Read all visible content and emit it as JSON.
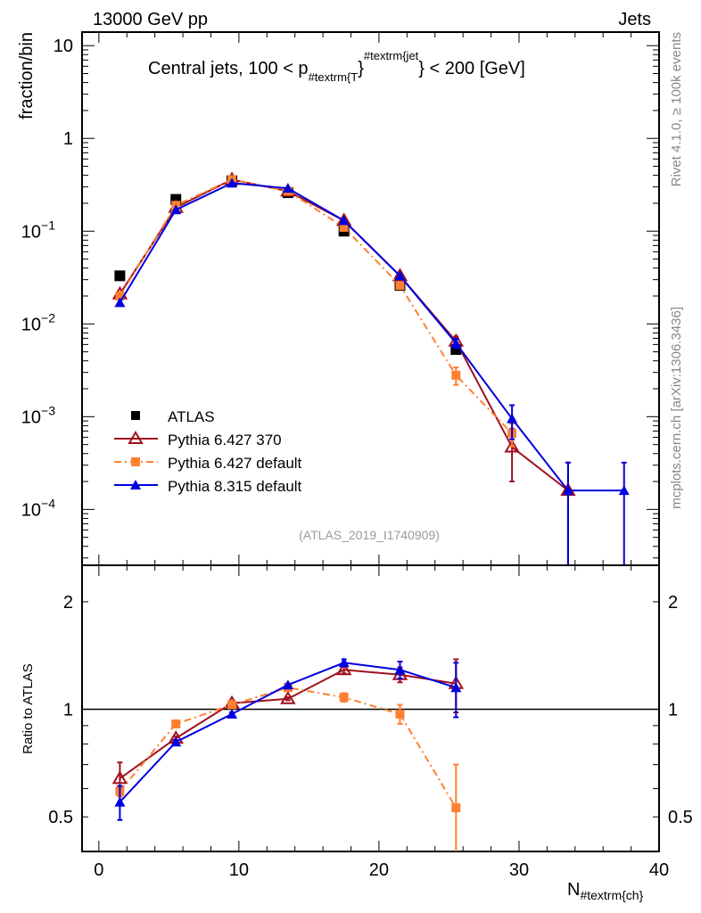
{
  "header": {
    "energy_label": "13000 GeV pp",
    "process_label": "Jets",
    "rivet_label": "Rivet 4.1.0, ≥ 100k events",
    "mcplots_label": "mcplots.cern.ch [arXiv:1306.3436]",
    "analysis_label": "(ATLAS_2019_I1740909)"
  },
  "colors": {
    "atlas": "#000000",
    "py6_370": "#a0101e",
    "py6_default": "#ff8030",
    "py8": "#0000e0"
  },
  "chart_data": [
    {
      "type": "line",
      "title_main": "Central jets, 100 < p",
      "title_sub": "#textrm{T",
      "title_sup": "#textrm{jet",
      "title_end": "} < 200 [GeV]",
      "title_brace": "}",
      "ylabel": "fraction/bin",
      "yscale": "log",
      "ylim": [
        2.5e-05,
        14
      ],
      "xlim": [
        -1.2,
        40
      ],
      "ytick_labels": [
        {
          "value": 10,
          "label": "10"
        },
        {
          "value": 1,
          "label": "1"
        },
        {
          "value": 0.1,
          "base": "10",
          "exp": "−1"
        },
        {
          "value": 0.01,
          "base": "10",
          "exp": "−2"
        },
        {
          "value": 0.001,
          "base": "10",
          "exp": "−3"
        },
        {
          "value": 0.0001,
          "base": "10",
          "exp": "−4"
        }
      ],
      "legend_position": "bottom-left",
      "series": [
        {
          "name": "ATLAS",
          "key": "atlas",
          "marker": "square",
          "line": "none",
          "x": [
            1.5,
            5.5,
            9.5,
            13.5,
            17.5,
            21.5,
            25.5
          ],
          "y": [
            0.033,
            0.22,
            0.35,
            0.26,
            0.1,
            0.026,
            0.0053
          ],
          "err_lo": [
            0,
            0,
            0,
            0,
            0,
            0,
            0
          ],
          "err_hi": [
            0,
            0,
            0,
            0,
            0,
            0,
            0
          ]
        },
        {
          "name": "Pythia 6.427 370",
          "key": "py6_370",
          "marker": "open-triangle",
          "line": "solid",
          "x": [
            1.5,
            5.5,
            9.5,
            13.5,
            17.5,
            21.5,
            25.5,
            29.5,
            33.5
          ],
          "y": [
            0.021,
            0.18,
            0.36,
            0.27,
            0.13,
            0.033,
            0.0065,
            0.00047,
            0.00016
          ],
          "err_lo": [
            0,
            0,
            0,
            0,
            0,
            0,
            0.0008,
            0.00027,
            0.00016
          ],
          "err_hi": [
            0,
            0,
            0,
            0,
            0,
            0,
            0.0008,
            0.00027,
            0.00016
          ]
        },
        {
          "name": "Pythia 6.427 default",
          "key": "py6_default",
          "marker": "square",
          "line": "dashdot",
          "x": [
            1.5,
            5.5,
            9.5,
            13.5,
            17.5,
            21.5,
            25.5,
            29.5
          ],
          "y": [
            0.02,
            0.19,
            0.36,
            0.27,
            0.11,
            0.026,
            0.0028,
            0.00066
          ],
          "err_lo": [
            0,
            0,
            0,
            0,
            0,
            0,
            0.0006,
            0.00018
          ],
          "err_hi": [
            0,
            0,
            0,
            0,
            0,
            0,
            0.0006,
            0.00018
          ]
        },
        {
          "name": "Pythia 8.315 default",
          "key": "py8",
          "marker": "triangle",
          "line": "solid",
          "x": [
            1.5,
            5.5,
            9.5,
            13.5,
            17.5,
            21.5,
            25.5,
            29.5,
            33.5,
            37.5
          ],
          "y": [
            0.017,
            0.17,
            0.33,
            0.29,
            0.13,
            0.033,
            0.0062,
            0.00095,
            0.00016,
            0.00016
          ],
          "err_lo": [
            0,
            0,
            0,
            0,
            0,
            0,
            0.0007,
            0.00038,
            0.00016,
            0.00016
          ],
          "err_hi": [
            0,
            0,
            0,
            0,
            0,
            0,
            0.0007,
            0.00038,
            0.00016,
            0.00016
          ]
        }
      ]
    },
    {
      "type": "line",
      "ylabel": "Ratio to ATLAS",
      "xlabel": "N",
      "xlabel_sub": "#textrm{ch}",
      "yscale": "log",
      "ylim": [
        0.4,
        2.53
      ],
      "xlim": [
        -1.2,
        40
      ],
      "reference_line": 1,
      "ytick_labels": [
        {
          "value": 2,
          "label": "2"
        },
        {
          "value": 1,
          "label": "1"
        },
        {
          "value": 0.5,
          "label": "0.5"
        }
      ],
      "xtick_labels": [
        {
          "value": 0,
          "label": "0"
        },
        {
          "value": 10,
          "label": "10"
        },
        {
          "value": 20,
          "label": "20"
        },
        {
          "value": 30,
          "label": "30"
        },
        {
          "value": 40,
          "label": "40"
        }
      ],
      "series": [
        {
          "name": "Pythia 6.427 370",
          "key": "py6_370",
          "marker": "open-triangle",
          "line": "solid",
          "x": [
            1.5,
            5.5,
            9.5,
            13.5,
            17.5,
            21.5,
            25.5
          ],
          "y": [
            0.64,
            0.83,
            1.04,
            1.07,
            1.29,
            1.25,
            1.18
          ],
          "err_lo": [
            0.07,
            0.01,
            0.01,
            0.01,
            0.03,
            0.06,
            0.2
          ],
          "err_hi": [
            0.07,
            0.01,
            0.01,
            0.01,
            0.03,
            0.06,
            0.2
          ]
        },
        {
          "name": "Pythia 6.427 default",
          "key": "py6_default",
          "marker": "square",
          "line": "dashdot",
          "x": [
            1.5,
            5.5,
            9.5,
            13.5,
            17.5,
            21.5,
            25.5
          ],
          "y": [
            0.59,
            0.91,
            1.03,
            1.15,
            1.08,
            0.97,
            0.53
          ],
          "err_lo": [
            0.02,
            0.02,
            0.01,
            0.01,
            0.03,
            0.06,
            0.2
          ],
          "err_hi": [
            0.02,
            0.02,
            0.01,
            0.01,
            0.03,
            0.06,
            0.17
          ]
        },
        {
          "name": "Pythia 8.315 default",
          "key": "py8",
          "marker": "triangle",
          "line": "solid",
          "x": [
            1.5,
            5.5,
            9.5,
            13.5,
            17.5,
            21.5,
            25.5
          ],
          "y": [
            0.55,
            0.81,
            0.97,
            1.17,
            1.35,
            1.29,
            1.15
          ],
          "err_lo": [
            0.06,
            0.01,
            0.01,
            0.01,
            0.03,
            0.07,
            0.2
          ],
          "err_hi": [
            0.06,
            0.01,
            0.01,
            0.01,
            0.03,
            0.07,
            0.2
          ]
        }
      ]
    }
  ]
}
